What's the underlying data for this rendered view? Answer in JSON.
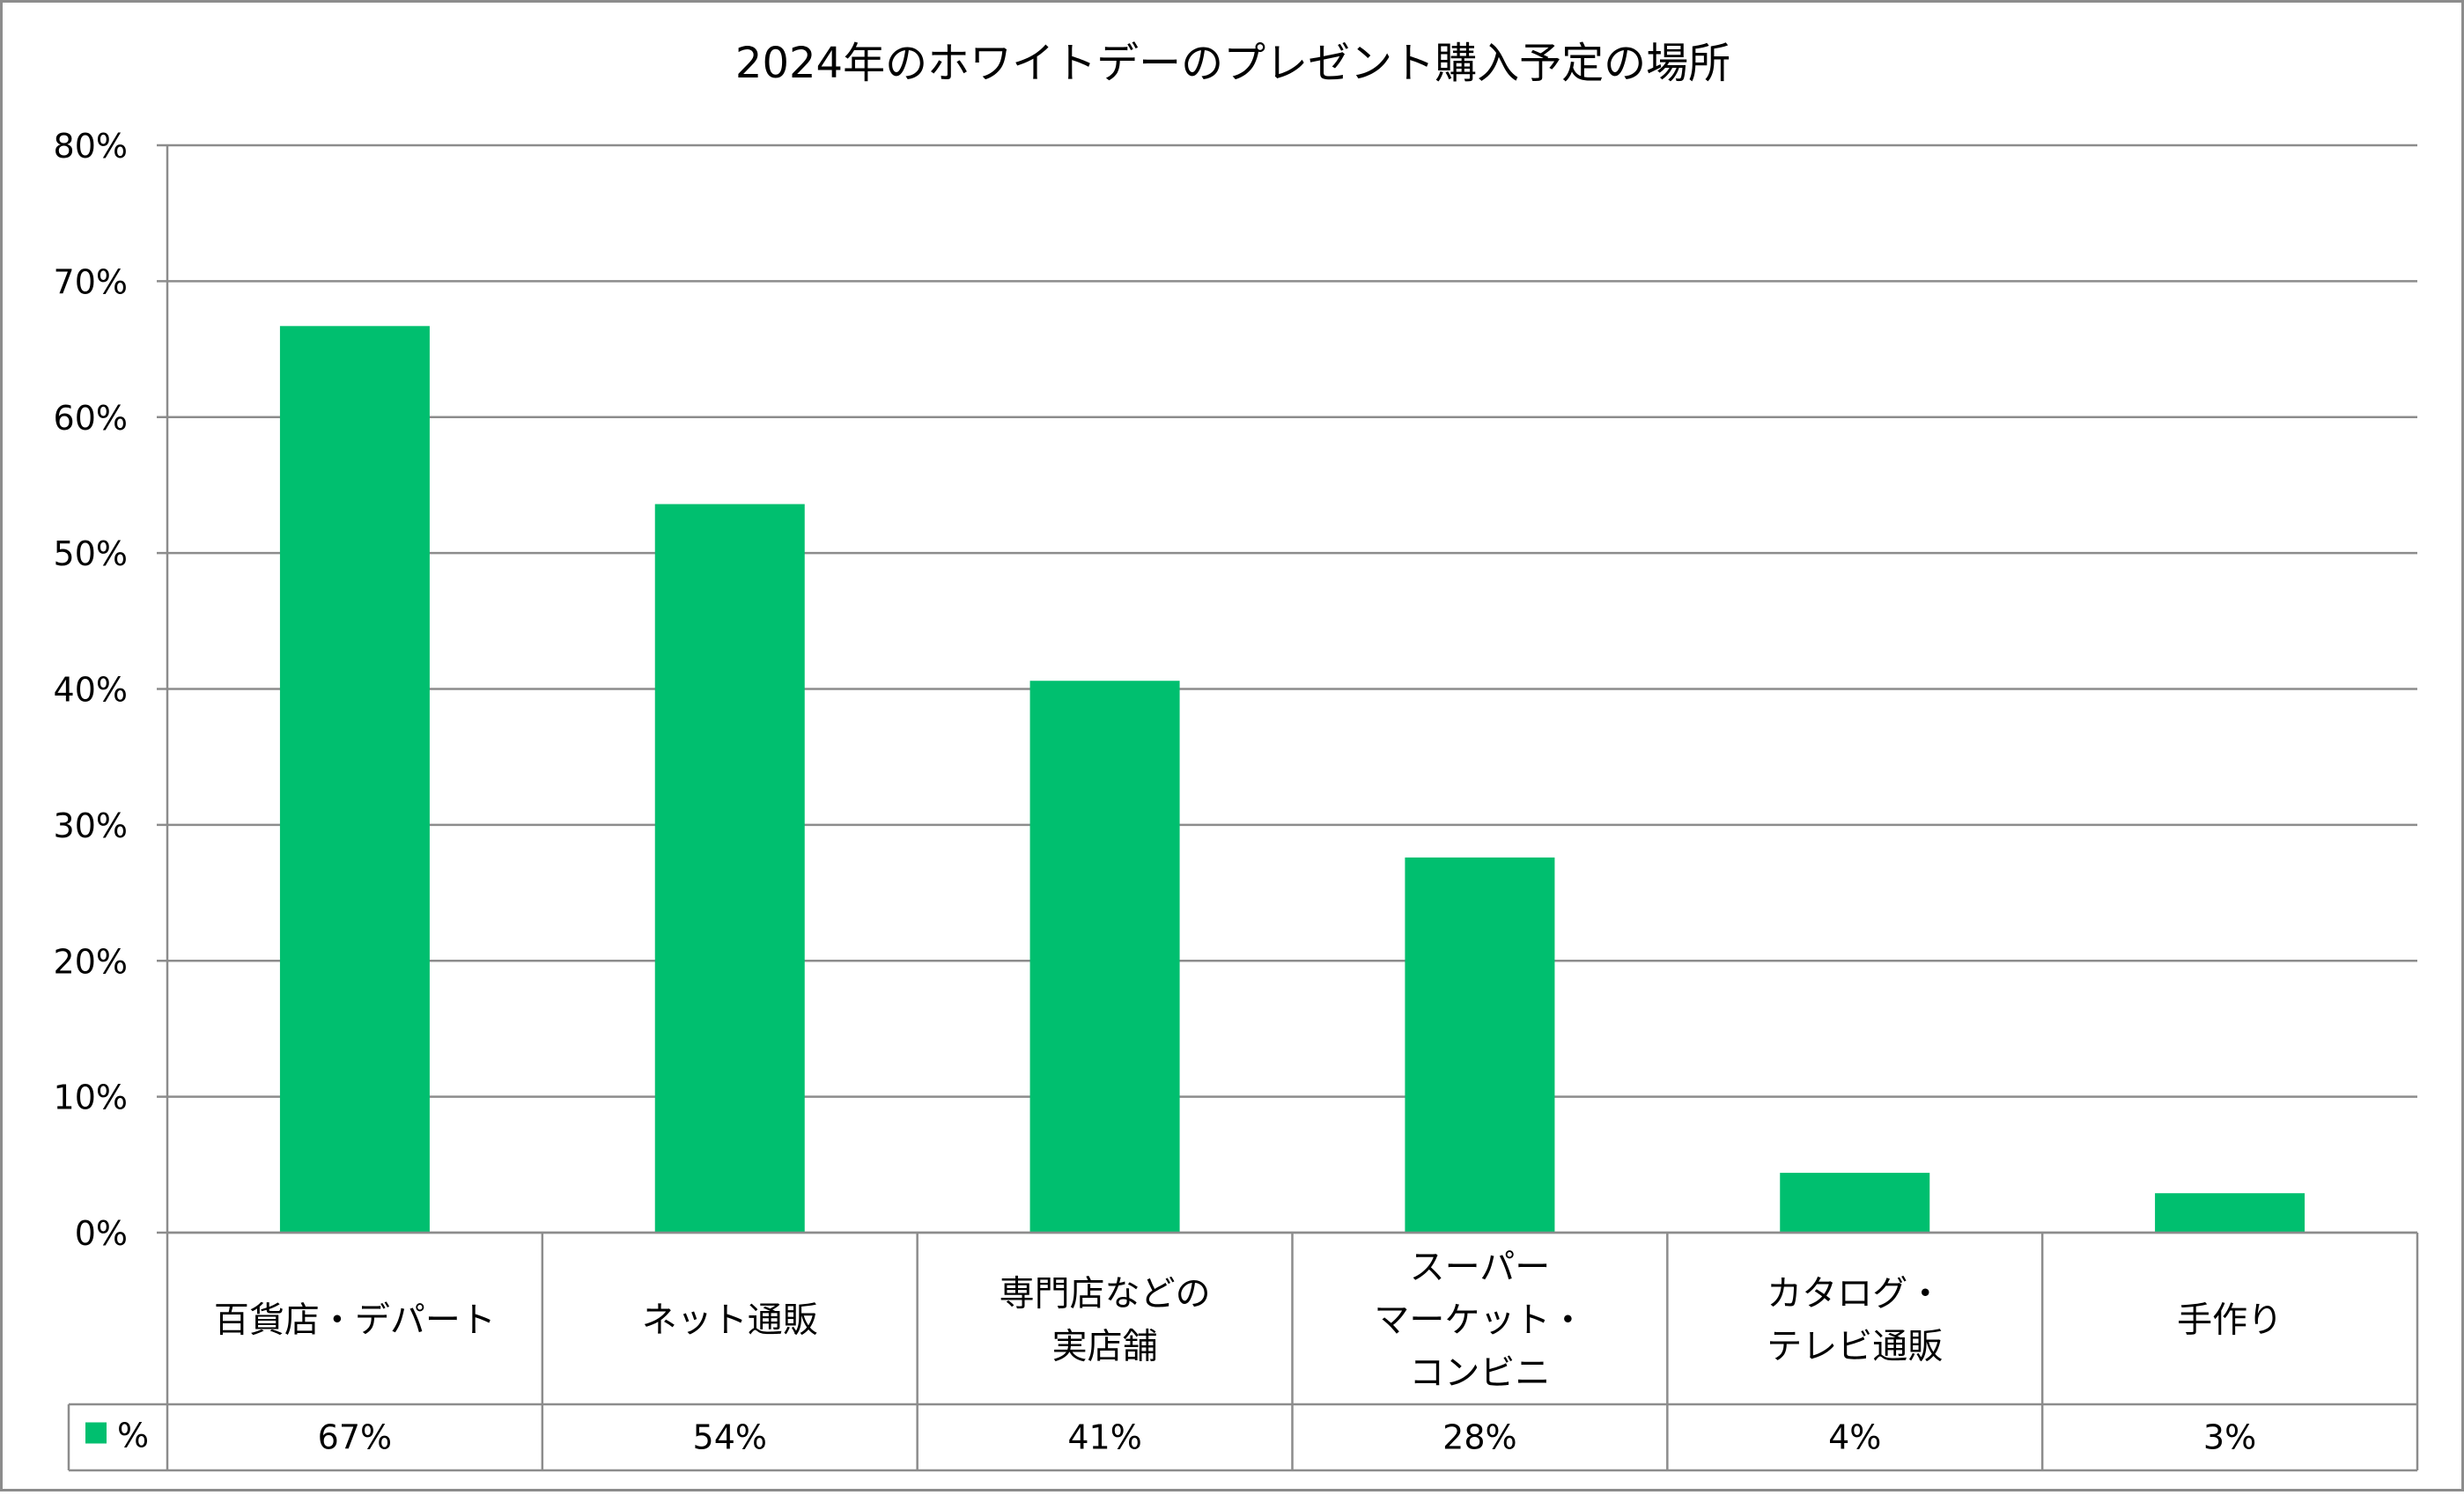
{
  "chart_data": {
    "type": "bar",
    "title": "2024年のホワイトデーのプレゼント購入予定の場所",
    "categories": [
      [
        "百貨店・デパート"
      ],
      [
        "ネット通販"
      ],
      [
        "専門店などの",
        "実店舗"
      ],
      [
        "スーパー",
        "マーケット・",
        "コンビニ"
      ],
      [
        "カタログ・",
        "テレビ通販"
      ],
      [
        "手作り"
      ]
    ],
    "series": [
      {
        "name": "%",
        "values": [
          66.7,
          53.6,
          40.6,
          27.6,
          4.4,
          2.9
        ],
        "value_labels": [
          "67%",
          "54%",
          "41%",
          "28%",
          "4%",
          "3%"
        ],
        "color": "#00BF6F"
      }
    ],
    "y_ticks": [
      "0%",
      "10%",
      "20%",
      "30%",
      "40%",
      "50%",
      "60%",
      "70%",
      "80%"
    ],
    "ylim": [
      0,
      80
    ],
    "y_step": 10,
    "grid": true,
    "legend": "data-table-left",
    "colors": {
      "bar": "#00BF6F",
      "grid": "#8c8c8c",
      "frame": "#8c8c8c"
    }
  }
}
